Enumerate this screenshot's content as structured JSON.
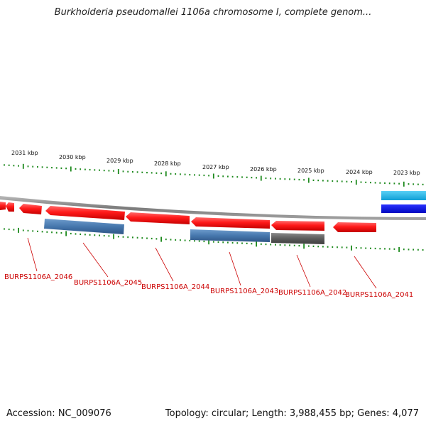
{
  "title": "Burkholderia pseudomallei 1106a chromosome I, complete genom...",
  "footer": {
    "accession": "Accession: NC_009076",
    "summary": "Topology: circular; Length: 3,988,455 bp; Genes: 4,077"
  },
  "scale_labels": [
    "2031 kbp",
    "2030 kbp",
    "2029 kbp",
    "2028 kbp",
    "2027 kbp",
    "2026 kbp",
    "2025 kbp",
    "2024 kbp",
    "2023 kbp"
  ],
  "gene_labels": [
    "BURPS1106A_2046",
    "BURPS1106A_2045",
    "BURPS1106A_2044",
    "BURPS1106A_2043",
    "BURPS1106A_2042",
    "BURPS1106A_2041"
  ],
  "colors": {
    "gene_red": "#ff1a1a",
    "feature_blue": "#4f80b5",
    "feature_gray": "#666666",
    "track_cyan": "#19b4ea",
    "track_blue": "#0a14e6",
    "tick_green": "#1e8a1e",
    "label_red": "#cc0000",
    "backbone": "#8a8a8a"
  }
}
